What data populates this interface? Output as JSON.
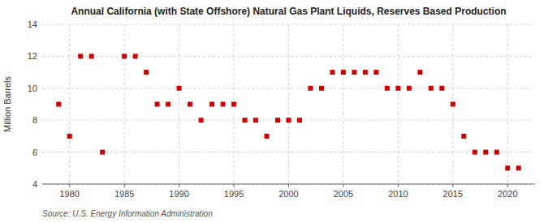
{
  "chart_data": {
    "type": "scatter",
    "title": "Annual California (with State Offshore) Natural Gas Plant Liquids, Reserves Based Production",
    "y_label": "Million Barrels",
    "annotations": [
      "Source: U.S. Energy Information Administration"
    ],
    "x": [
      1979,
      1980,
      1981,
      1982,
      1983,
      1985,
      1986,
      1987,
      1988,
      1989,
      1990,
      1991,
      1992,
      1993,
      1994,
      1995,
      1996,
      1997,
      1998,
      1999,
      2000,
      2001,
      2002,
      2003,
      2004,
      2005,
      2006,
      2007,
      2008,
      2009,
      2010,
      2011,
      2012,
      2013,
      2014,
      2015,
      2016,
      2017,
      2018,
      2019,
      2020,
      2021
    ],
    "values": [
      9.0,
      7.0,
      12.0,
      12.0,
      6.0,
      12.0,
      12.0,
      11.0,
      9.0,
      9.0,
      10.0,
      9.0,
      8.0,
      9.0,
      9.0,
      9.0,
      8.0,
      8.0,
      7.0,
      8.0,
      8.0,
      8.0,
      10.0,
      10.0,
      11.0,
      11.0,
      11.0,
      11.0,
      11.0,
      10.0,
      10.0,
      10.0,
      11.0,
      10.0,
      10.0,
      9.0,
      7.0,
      6.0,
      6.0,
      6.0,
      5.0,
      5.0
    ],
    "color": "#cc0000",
    "marker": "square",
    "xlim": [
      1977.5,
      2022.5
    ],
    "xticks": [
      1980,
      1985,
      1990,
      1995,
      2000,
      2005,
      2010,
      2015,
      2020
    ],
    "ylim": [
      4,
      14
    ],
    "yticks": [
      4,
      6,
      8,
      10,
      12,
      14
    ],
    "grid": true
  }
}
